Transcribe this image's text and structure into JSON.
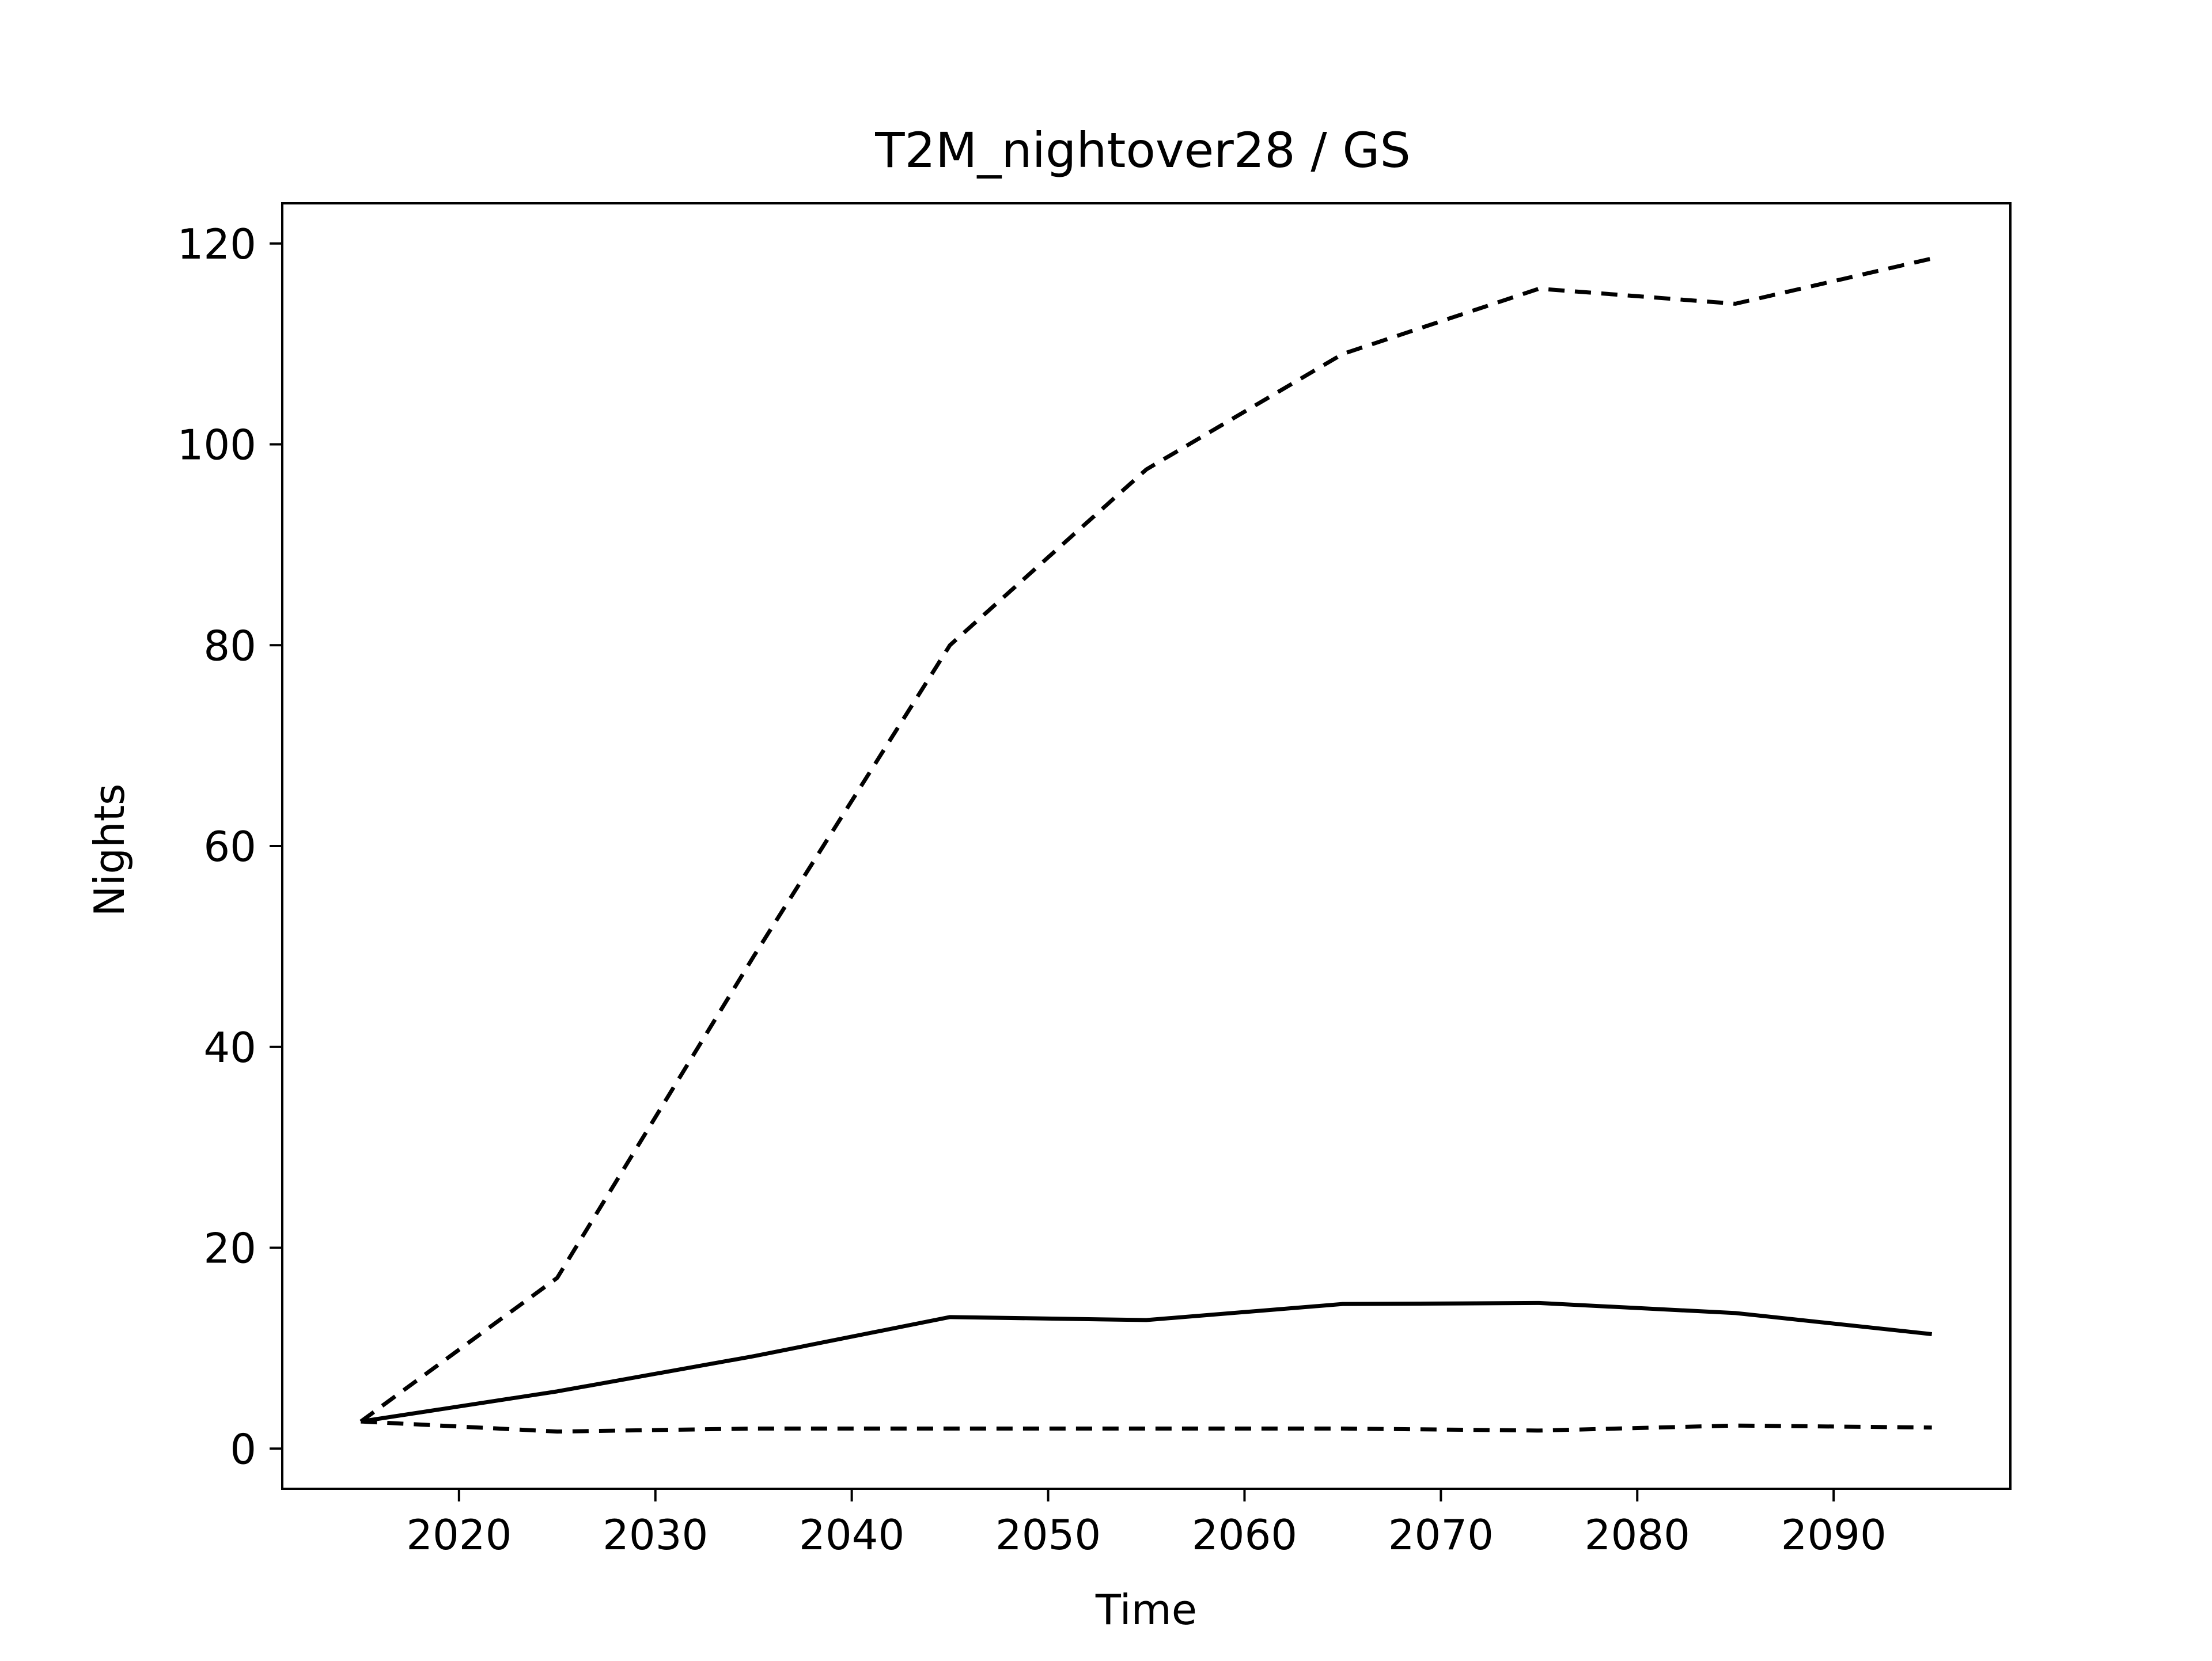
{
  "chart_data": {
    "type": "line",
    "title": "T2M_nightover28 / GS",
    "xlabel": "Time",
    "ylabel": "Nights",
    "xlim": [
      2011,
      2099
    ],
    "ylim": [
      -4,
      124
    ],
    "xticks": [
      2020,
      2030,
      2040,
      2050,
      2060,
      2070,
      2080,
      2090
    ],
    "yticks": [
      0,
      20,
      40,
      60,
      80,
      100,
      120
    ],
    "grid": false,
    "legend": "none",
    "x": [
      2015,
      2025,
      2035,
      2045,
      2055,
      2065,
      2075,
      2085,
      2095
    ],
    "series": [
      {
        "values": [
          2.7,
          17.0,
          49.0,
          80.0,
          97.5,
          109.0,
          115.5,
          114.0,
          118.5
        ],
        "style": "dashed",
        "color": "#000000"
      },
      {
        "values": [
          2.7,
          5.7,
          9.2,
          13.1,
          12.8,
          14.4,
          14.5,
          13.5,
          11.4
        ],
        "style": "solid",
        "color": "#000000"
      },
      {
        "values": [
          2.7,
          1.7,
          2.0,
          2.0,
          2.0,
          2.0,
          1.8,
          2.3,
          2.1
        ],
        "style": "dashed",
        "color": "#000000"
      }
    ]
  }
}
